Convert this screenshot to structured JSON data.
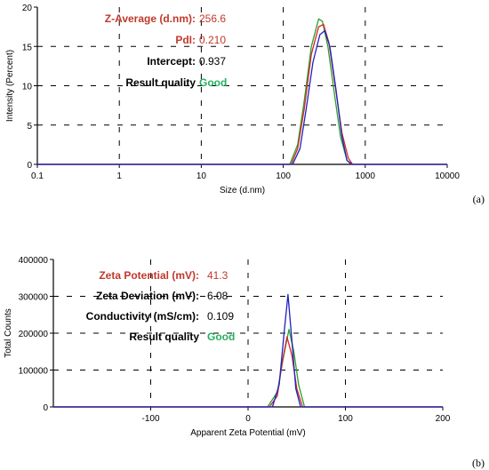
{
  "chart_data": [
    {
      "type": "line",
      "panel": "a",
      "xlabel": "Size (d.nm)",
      "ylabel": "Intensity (Percent)",
      "xscale": "log",
      "xlim": [
        0.1,
        10000
      ],
      "ylim": [
        0,
        20
      ],
      "xticks": [
        "0.1",
        "1",
        "10",
        "100",
        "1000",
        "10000"
      ],
      "yticks": [
        "0",
        "5",
        "10",
        "15",
        "20"
      ],
      "grid": "dashed",
      "colors": [
        "#2ca02c",
        "#d62728",
        "#2020c0"
      ],
      "results": [
        {
          "label": "Z-Average (d.nm):",
          "value": "256.6",
          "label_color": "#c0392b",
          "value_color": "#c0392b"
        },
        {
          "label": "PdI:",
          "value": "0.210",
          "label_color": "#c0392b",
          "value_color": "#c0392b"
        },
        {
          "label": "Intercept:",
          "value": "0.937",
          "label_color": "#000000",
          "value_color": "#000000"
        },
        {
          "label": "Result quality",
          "value": "Good",
          "label_color": "#000000",
          "value_color": "#27ae60"
        }
      ],
      "series": [
        {
          "x": [
            0.1,
            120,
            150,
            180,
            220,
            270,
            300,
            350,
            420,
            500,
            600,
            700,
            10000
          ],
          "y": [
            0,
            0,
            2.5,
            8,
            15,
            18.5,
            18.2,
            15,
            9,
            3.5,
            0.5,
            0,
            0
          ]
        },
        {
          "x": [
            0.1,
            125,
            150,
            180,
            220,
            270,
            310,
            360,
            430,
            520,
            620,
            700,
            10000
          ],
          "y": [
            0,
            0,
            2,
            7,
            14,
            17.5,
            17.8,
            15.5,
            10,
            4,
            0.8,
            0,
            0
          ]
        },
        {
          "x": [
            0.1,
            130,
            160,
            190,
            230,
            280,
            320,
            370,
            440,
            520,
            600,
            680,
            10000
          ],
          "y": [
            0,
            0,
            2,
            7,
            13,
            16.5,
            17,
            15,
            9.5,
            3.5,
            0.5,
            0,
            0
          ]
        }
      ]
    },
    {
      "type": "line",
      "panel": "b",
      "xlabel": "Apparent Zeta Potential (mV)",
      "ylabel": "Total Counts",
      "xlim": [
        -200,
        200
      ],
      "ylim": [
        0,
        400000
      ],
      "xticks": [
        "-100",
        "0",
        "100",
        "200"
      ],
      "yticks": [
        "0",
        "100000",
        "200000",
        "300000",
        "400000"
      ],
      "grid": "dashed",
      "colors": [
        "#2ca02c",
        "#d62728",
        "#2020c0"
      ],
      "results": [
        {
          "label": "Zeta Potential (mV):",
          "value": "41.3",
          "label_color": "#c0392b",
          "value_color": "#c0392b"
        },
        {
          "label": "Zeta Deviation (mV):",
          "value": "6.08",
          "label_color": "#000000",
          "value_color": "#000000"
        },
        {
          "label": "Conductivity (mS/cm):",
          "value": "0.109",
          "label_color": "#000000",
          "value_color": "#000000"
        },
        {
          "label": "Result quality",
          "value": "Good",
          "label_color": "#000000",
          "value_color": "#27ae60"
        }
      ],
      "series": [
        {
          "x": [
            -200,
            20,
            30,
            36,
            42,
            47,
            52,
            58,
            200
          ],
          "y": [
            0,
            0,
            40000,
            130000,
            210000,
            150000,
            60000,
            0,
            0
          ]
        },
        {
          "x": [
            -200,
            22,
            30,
            35,
            40,
            45,
            50,
            56,
            200
          ],
          "y": [
            0,
            0,
            30000,
            120000,
            190000,
            140000,
            50000,
            0,
            0
          ]
        },
        {
          "x": [
            -200,
            25,
            32,
            37,
            41,
            45,
            49,
            54,
            200
          ],
          "y": [
            0,
            0,
            60000,
            200000,
            305000,
            180000,
            50000,
            0,
            0
          ]
        }
      ]
    }
  ]
}
